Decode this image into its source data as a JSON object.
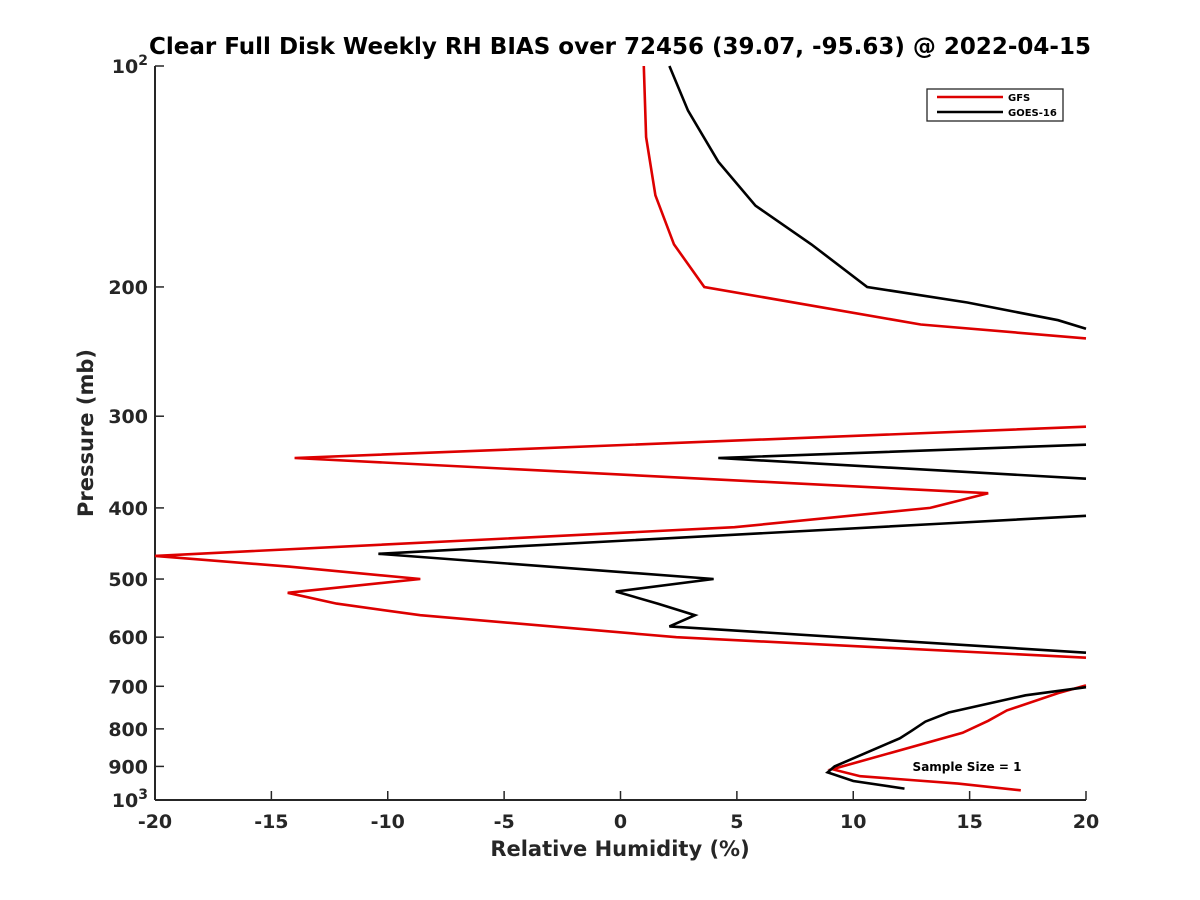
{
  "chart_data": {
    "type": "line",
    "title": "Clear Full Disk Weekly RH BIAS over 72456 (39.07, -95.63) @ 2022-04-15",
    "xlabel": "Relative Humidity (%)",
    "ylabel": "Pressure (mb)",
    "xlim": [
      -20,
      20
    ],
    "ylim": [
      100,
      1000
    ],
    "yscale": "log",
    "yreverse": true,
    "grid": false,
    "legend_position": "top-right",
    "x_ticks": [
      "-20",
      "-15",
      "-10",
      "-5",
      "0",
      "5",
      "10",
      "15",
      "20"
    ],
    "x_tick_values": [
      -20,
      -15,
      -10,
      -5,
      0,
      5,
      10,
      15,
      20
    ],
    "y_ticks": [
      {
        "value": 100,
        "base": "10",
        "exp": "2"
      },
      {
        "value": 200,
        "label": "200"
      },
      {
        "value": 300,
        "label": "300"
      },
      {
        "value": 400,
        "label": "400"
      },
      {
        "value": 500,
        "label": "500"
      },
      {
        "value": 600,
        "label": "600"
      },
      {
        "value": 700,
        "label": "700"
      },
      {
        "value": 800,
        "label": "800"
      },
      {
        "value": 900,
        "label": "900"
      },
      {
        "value": 1000,
        "base": "10",
        "exp": "3"
      }
    ],
    "annotation": "Sample Size = 1",
    "series": [
      {
        "name": "GFS",
        "color": "#dd0000",
        "points": [
          [
            1.0,
            100
          ],
          [
            1.1,
            125
          ],
          [
            1.5,
            150
          ],
          [
            2.3,
            175
          ],
          [
            3.6,
            200
          ],
          [
            12.9,
            225
          ],
          [
            20.0,
            235
          ],
          [
            null,
            null
          ],
          [
            20.0,
            310
          ],
          [
            -14.0,
            342
          ],
          [
            15.8,
            382
          ],
          [
            13.3,
            400
          ],
          [
            4.9,
            425
          ],
          [
            -20.0,
            465
          ],
          [
            -14.2,
            481
          ],
          [
            -8.6,
            500
          ],
          [
            -14.3,
            522
          ],
          [
            -12.2,
            540
          ],
          [
            -8.6,
            560
          ],
          [
            2.4,
            600
          ],
          [
            20.0,
            640
          ],
          [
            null,
            null
          ],
          [
            20.0,
            698
          ],
          [
            18.8,
            715
          ],
          [
            16.6,
            755
          ],
          [
            15.8,
            780
          ],
          [
            14.7,
            810
          ],
          [
            9.1,
            908
          ],
          [
            10.3,
            928
          ],
          [
            14.5,
            950
          ],
          [
            17.2,
            970
          ]
        ]
      },
      {
        "name": "GOES-16",
        "color": "#000000",
        "points": [
          [
            2.1,
            100
          ],
          [
            2.9,
            115
          ],
          [
            4.2,
            135
          ],
          [
            5.8,
            155
          ],
          [
            8.2,
            175
          ],
          [
            10.6,
            200
          ],
          [
            14.9,
            210
          ],
          [
            18.8,
            222
          ],
          [
            20.0,
            228
          ],
          [
            null,
            null
          ],
          [
            20.0,
            328
          ],
          [
            4.2,
            342
          ],
          [
            20.0,
            365
          ],
          [
            null,
            null
          ],
          [
            20.0,
            410
          ],
          [
            13.9,
            420
          ],
          [
            -10.4,
            462
          ],
          [
            4.0,
            500
          ],
          [
            -0.2,
            520
          ],
          [
            1.6,
            540
          ],
          [
            3.2,
            560
          ],
          [
            2.1,
            580
          ],
          [
            20.0,
            630
          ],
          [
            null,
            null
          ],
          [
            20.0,
            702
          ],
          [
            17.4,
            720
          ],
          [
            14.1,
            760
          ],
          [
            13.1,
            782
          ],
          [
            12.5,
            805
          ],
          [
            12.0,
            824
          ],
          [
            11.2,
            845
          ],
          [
            9.2,
            900
          ],
          [
            8.9,
            917
          ],
          [
            10.0,
            942
          ],
          [
            12.2,
            965
          ]
        ]
      }
    ]
  }
}
